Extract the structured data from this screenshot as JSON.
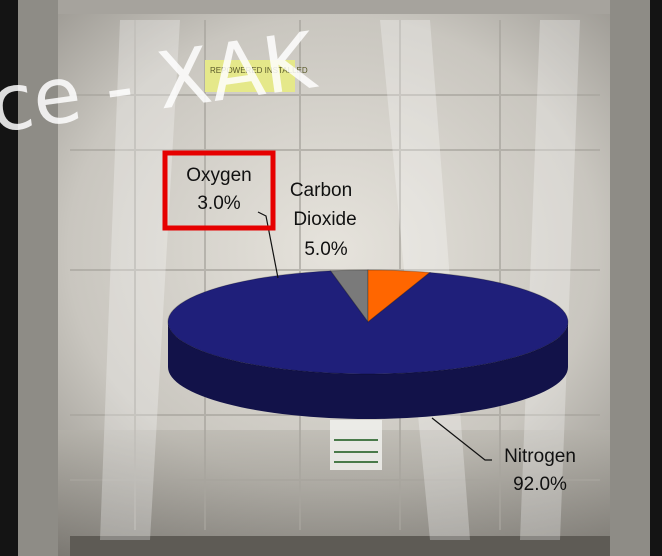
{
  "watermark": "ce - XAK",
  "photo_label": "REPOWERED INSTALLED",
  "colors": {
    "nitrogen": "#1f1f7a",
    "carbon_dioxide": "#ff6600",
    "oxygen": "#7a7a7a",
    "highlight": "#e60000"
  },
  "chart_data": {
    "type": "pie",
    "title": "",
    "slices": [
      {
        "name": "Oxygen",
        "label": "3.0%",
        "value": 3.0
      },
      {
        "name": "Carbon",
        "name2": "Dioxide",
        "label": "5.0%",
        "value": 5.0
      },
      {
        "name": "Nitrogen",
        "label": "92.0%",
        "value": 92.0
      }
    ],
    "legend": "none",
    "highlighted_slice": "Oxygen"
  }
}
